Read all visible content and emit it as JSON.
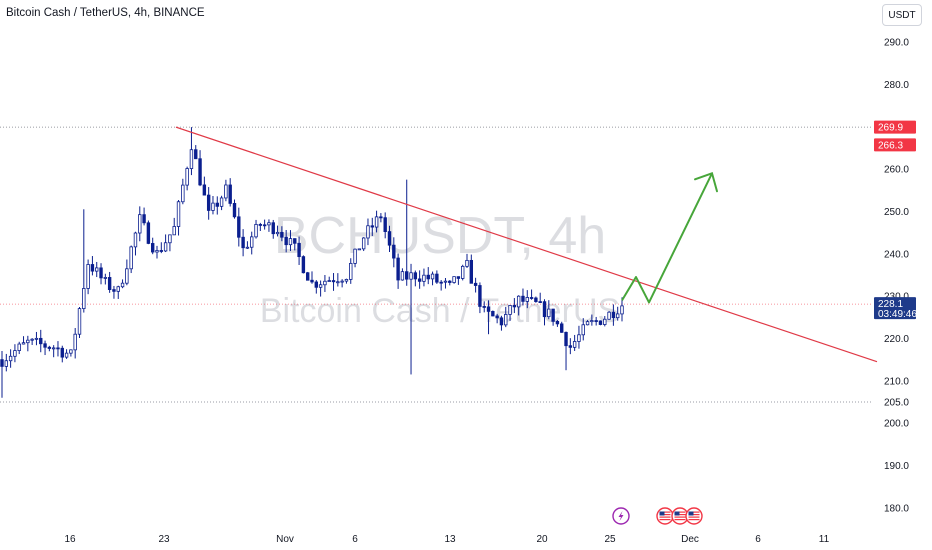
{
  "header": {
    "title": "Bitcoin Cash / TetherUS, 4h, BINANCE",
    "currency": "USDT"
  },
  "watermark": {
    "line1": "BCHUSDT, 4h",
    "line2": "Bitcoin Cash / TetherUS"
  },
  "colors": {
    "up": "#26a69a",
    "down": "#131e70",
    "candle": "#0b1f8f",
    "trendline": "#e03a47",
    "arrow": "#47a63a",
    "price_tag": "#1e3a8a",
    "level_tag": "#f23645"
  },
  "chart_data": {
    "type": "candlestick",
    "y_axis": {
      "min": 175,
      "max": 295,
      "ticks": [
        "180.0",
        "190.0",
        "200.0",
        "210.0",
        "220.0",
        "230.0",
        "240.0",
        "250.0",
        "260.0",
        "270.0",
        "280.0",
        "290.0"
      ]
    },
    "x_axis": {
      "ticks": [
        "16",
        "23",
        "Nov",
        "6",
        "13",
        "20",
        "25",
        "Dec",
        "6",
        "11"
      ]
    },
    "price_levels": [
      {
        "label": "269.9",
        "value": 269.9,
        "kind": "high-line"
      },
      {
        "label": "266.3",
        "value": 266.3,
        "kind": "level"
      },
      {
        "label": "205.0",
        "value": 205.0,
        "kind": "low-line"
      }
    ],
    "current_price": {
      "value": 228.1,
      "label": "228.1",
      "countdown": "03:49:46"
    },
    "trendline": {
      "from": {
        "x_index": 0.0,
        "price": 269.9
      },
      "to": {
        "x_index": 1.0,
        "price": 214.5
      }
    },
    "projection": [
      229.0,
      234.5,
      228.5,
      259.0
    ],
    "path_anchors": [
      [
        0,
        215
      ],
      [
        6,
        219
      ],
      [
        12,
        218
      ],
      [
        16,
        216
      ],
      [
        20,
        238
      ],
      [
        24,
        233
      ],
      [
        27,
        231
      ],
      [
        32,
        248
      ],
      [
        36,
        240
      ],
      [
        40,
        246
      ],
      [
        44,
        266
      ],
      [
        48,
        249
      ],
      [
        52,
        255
      ],
      [
        56,
        241
      ],
      [
        60,
        247
      ],
      [
        64,
        246
      ],
      [
        68,
        241
      ],
      [
        72,
        233
      ],
      [
        76,
        234
      ],
      [
        80,
        235
      ],
      [
        84,
        244
      ],
      [
        88,
        249
      ],
      [
        92,
        234
      ],
      [
        96,
        235
      ],
      [
        100,
        234
      ],
      [
        104,
        232
      ],
      [
        108,
        237
      ],
      [
        112,
        226
      ],
      [
        116,
        224
      ],
      [
        120,
        229
      ],
      [
        124,
        228
      ],
      [
        128,
        225
      ],
      [
        132,
        218
      ],
      [
        136,
        223
      ],
      [
        140,
        225
      ],
      [
        144,
        228
      ]
    ],
    "badges": [
      "lightning-icon",
      "us-flag-icon",
      "us-flag-icon",
      "us-flag-icon"
    ]
  }
}
